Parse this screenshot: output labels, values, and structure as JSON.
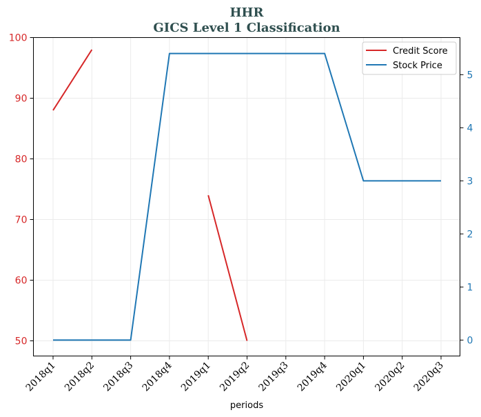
{
  "chart_data": {
    "type": "line",
    "title": "HHR",
    "subtitle": "GICS Level 1 Classification",
    "xlabel": "periods",
    "ylabel_left": "",
    "ylabel_right": "",
    "categories": [
      "2018q1",
      "2018q2",
      "2018q3",
      "2018q4",
      "2019q1",
      "2019q2",
      "2019q3",
      "2019q4",
      "2020q1",
      "2020q2",
      "2020q3"
    ],
    "ylim_left": [
      47.5,
      100
    ],
    "yticks_left": [
      50,
      60,
      70,
      80,
      90,
      100
    ],
    "ylim_right": [
      -0.3,
      5.7
    ],
    "yticks_right": [
      0,
      1,
      2,
      3,
      4,
      5
    ],
    "grid": true,
    "legend_position": "top-right",
    "series": [
      {
        "name": "Credit Score",
        "axis": "left",
        "color": "#d62728",
        "values": [
          88,
          98,
          null,
          null,
          74,
          50,
          null,
          null,
          null,
          null,
          null
        ]
      },
      {
        "name": "Stock Price",
        "axis": "right",
        "color": "#1f77b4",
        "values": [
          0,
          0,
          0,
          5.4,
          5.4,
          5.4,
          5.4,
          5.4,
          3.0,
          3.0,
          3.0
        ]
      }
    ],
    "colors": {
      "left_axis": "#d62728",
      "right_axis": "#1f77b4",
      "title": "#2f4f4f"
    }
  }
}
